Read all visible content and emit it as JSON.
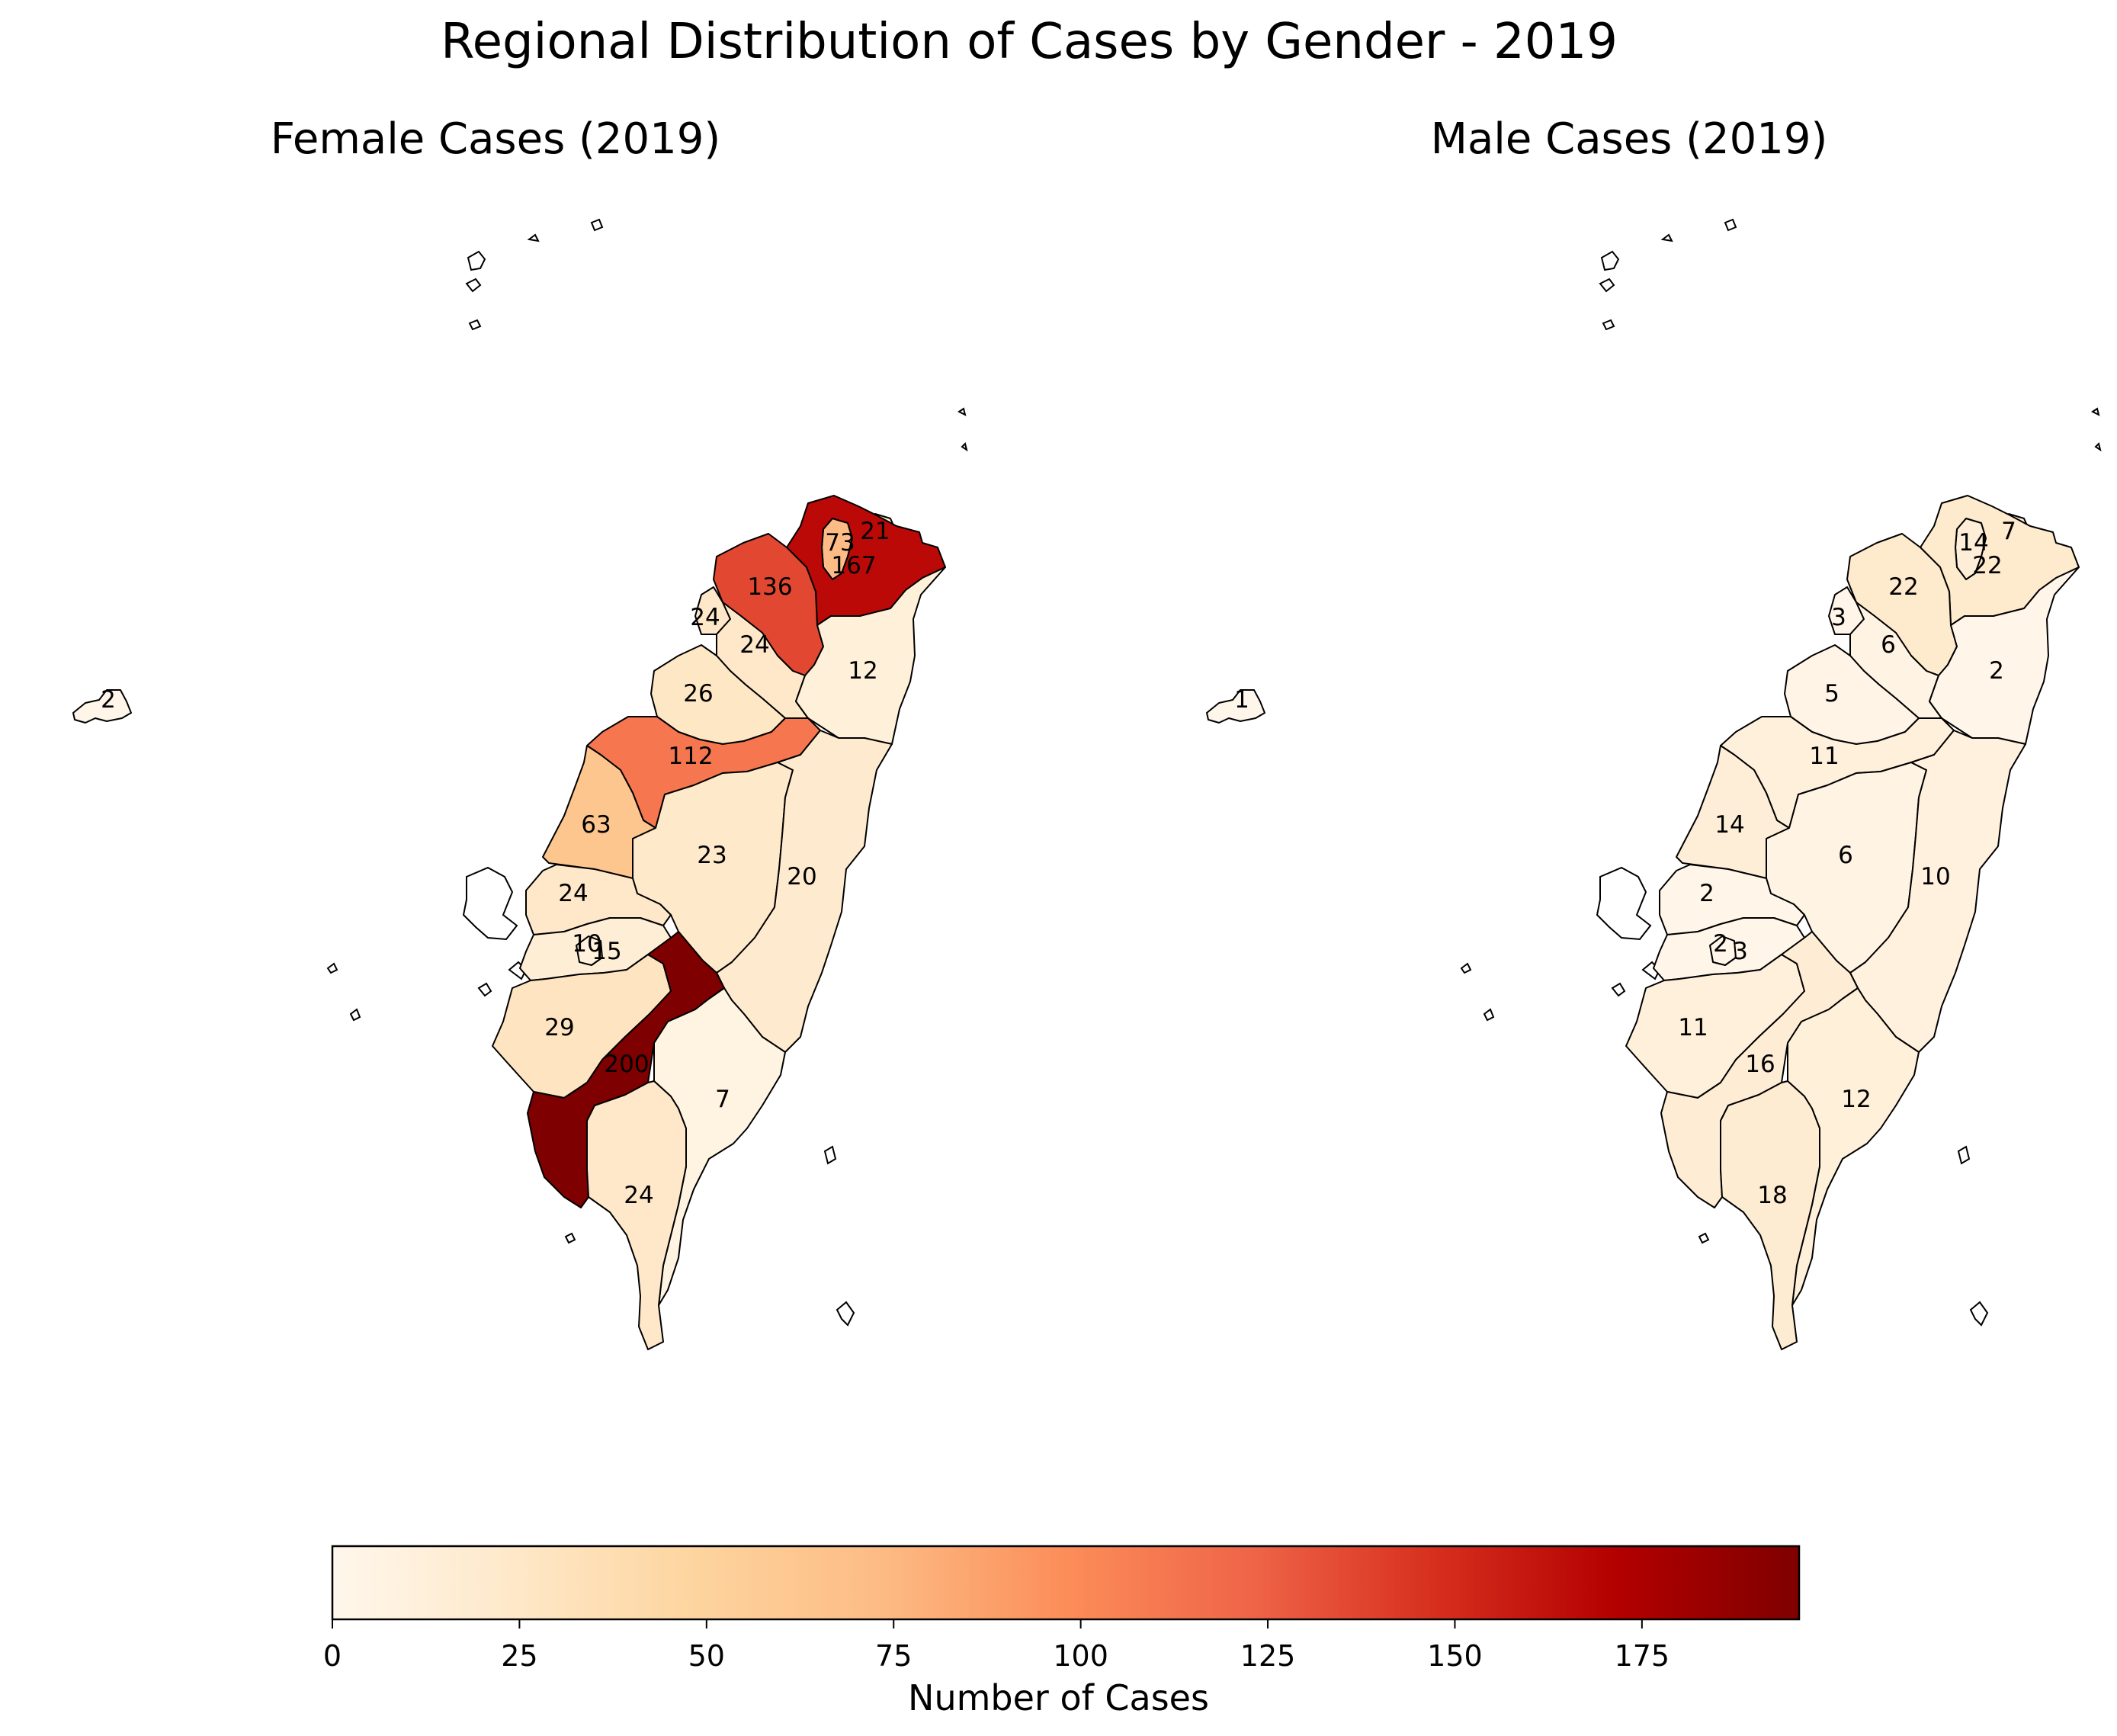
{
  "title": "Regional Distribution of Cases by Gender - 2019",
  "colormap": "OrRd",
  "colors": {
    "low": "#fff7ec",
    "mid": "#fdd49e",
    "high": "#7f0000",
    "edge": "#000000"
  },
  "chart_data": [
    {
      "type": "choropleth",
      "title": "Female Cases (2019)",
      "labels": [
        "2",
        "21",
        "73",
        "167",
        "136",
        "24",
        "24",
        "12",
        "26",
        "112",
        "63",
        "23",
        "20",
        "24",
        "10",
        "15",
        "29",
        "200",
        "7",
        "24"
      ],
      "regions": [
        {
          "name": "Kinmen",
          "value": 2
        },
        {
          "name": "Keelung",
          "value": 21
        },
        {
          "name": "Taipei",
          "value": 73
        },
        {
          "name": "New Taipei",
          "value": 167
        },
        {
          "name": "Taoyuan",
          "value": 136
        },
        {
          "name": "Hsinchu City",
          "value": 24
        },
        {
          "name": "Hsinchu County",
          "value": 24
        },
        {
          "name": "Yilan",
          "value": 12
        },
        {
          "name": "Miaoli",
          "value": 26
        },
        {
          "name": "Taichung",
          "value": 112
        },
        {
          "name": "Changhua",
          "value": 63
        },
        {
          "name": "Nantou",
          "value": 23
        },
        {
          "name": "Hualien",
          "value": 20
        },
        {
          "name": "Yunlin",
          "value": 24
        },
        {
          "name": "Chiayi City",
          "value": 10
        },
        {
          "name": "Chiayi County",
          "value": 15
        },
        {
          "name": "Tainan",
          "value": 29
        },
        {
          "name": "Kaohsiung",
          "value": 200
        },
        {
          "name": "Taitung",
          "value": 7
        },
        {
          "name": "Pingtung",
          "value": 24
        }
      ]
    },
    {
      "type": "choropleth",
      "title": "Male Cases (2019)",
      "labels": [
        "1",
        "7",
        "14",
        "22",
        "22",
        "3",
        "6",
        "2",
        "5",
        "11",
        "14",
        "6",
        "10",
        "2",
        "2",
        "3",
        "11",
        "16",
        "12",
        "18"
      ],
      "regions": [
        {
          "name": "Kinmen",
          "value": 1
        },
        {
          "name": "Keelung",
          "value": 7
        },
        {
          "name": "Taipei",
          "value": 14
        },
        {
          "name": "New Taipei",
          "value": 22
        },
        {
          "name": "Taoyuan",
          "value": 22
        },
        {
          "name": "Hsinchu City",
          "value": 3
        },
        {
          "name": "Hsinchu County",
          "value": 6
        },
        {
          "name": "Yilan",
          "value": 2
        },
        {
          "name": "Miaoli",
          "value": 5
        },
        {
          "name": "Taichung",
          "value": 11
        },
        {
          "name": "Changhua",
          "value": 14
        },
        {
          "name": "Nantou",
          "value": 6
        },
        {
          "name": "Hualien",
          "value": 10
        },
        {
          "name": "Yunlin",
          "value": 2
        },
        {
          "name": "Chiayi City",
          "value": 2
        },
        {
          "name": "Chiayi County",
          "value": 3
        },
        {
          "name": "Tainan",
          "value": 11
        },
        {
          "name": "Kaohsiung",
          "value": 16
        },
        {
          "name": "Taitung",
          "value": 12
        },
        {
          "name": "Pingtung",
          "value": 18
        }
      ]
    }
  ],
  "colorbar": {
    "label": "Number of Cases",
    "range": [
      0,
      196
    ],
    "ticks": [
      {
        "value": 0,
        "label": "0"
      },
      {
        "value": 25,
        "label": "25"
      },
      {
        "value": 50,
        "label": "50"
      },
      {
        "value": 75,
        "label": "75"
      },
      {
        "value": 100,
        "label": "100"
      },
      {
        "value": 125,
        "label": "125"
      },
      {
        "value": 150,
        "label": "150"
      },
      {
        "value": 175,
        "label": "175"
      }
    ]
  }
}
